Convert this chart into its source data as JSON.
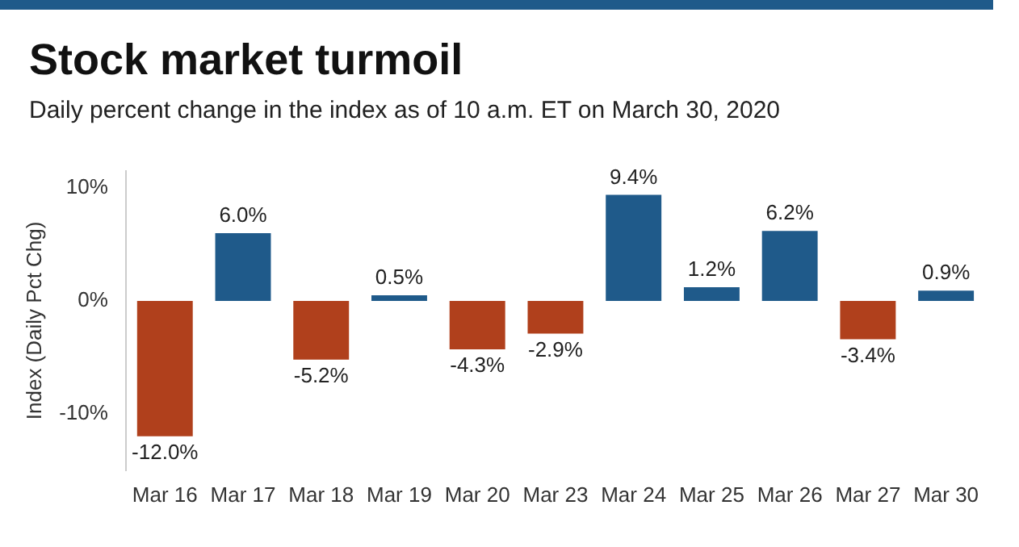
{
  "chart_data": {
    "type": "bar",
    "title": "Stock market turmoil",
    "subtitle": "Daily percent change in the index as of 10 a.m. ET on March 30, 2020",
    "ylabel": "Index (Daily Pct Chg)",
    "categories": [
      "Mar 16",
      "Mar 17",
      "Mar 18",
      "Mar 19",
      "Mar 20",
      "Mar 23",
      "Mar 24",
      "Mar 25",
      "Mar 26",
      "Mar 27",
      "Mar 30"
    ],
    "values": [
      -12.0,
      6.0,
      -5.2,
      0.5,
      -4.3,
      -2.9,
      9.4,
      1.2,
      6.2,
      -3.4,
      0.9
    ],
    "colors": [
      "#b0401c",
      "#1f5a8a",
      "#b0401c",
      "#1f5a8a",
      "#b0401c",
      "#b0401c",
      "#1f5a8a",
      "#1f5a8a",
      "#1f5a8a",
      "#b0401c",
      "#1f5a8a"
    ],
    "value_labels": [
      "-12.0%",
      "6.0%",
      "-5.2%",
      "0.5%",
      "-4.3%",
      "-2.9%",
      "9.4%",
      "1.2%",
      "6.2%",
      "-3.4%",
      "0.9%"
    ],
    "ylim": [
      -15,
      11.5
    ],
    "yticks": [
      {
        "value": -10,
        "label": "-10%"
      },
      {
        "value": 0,
        "label": "0%"
      },
      {
        "value": 10,
        "label": "10%"
      }
    ],
    "grid": false,
    "legend": false
  }
}
